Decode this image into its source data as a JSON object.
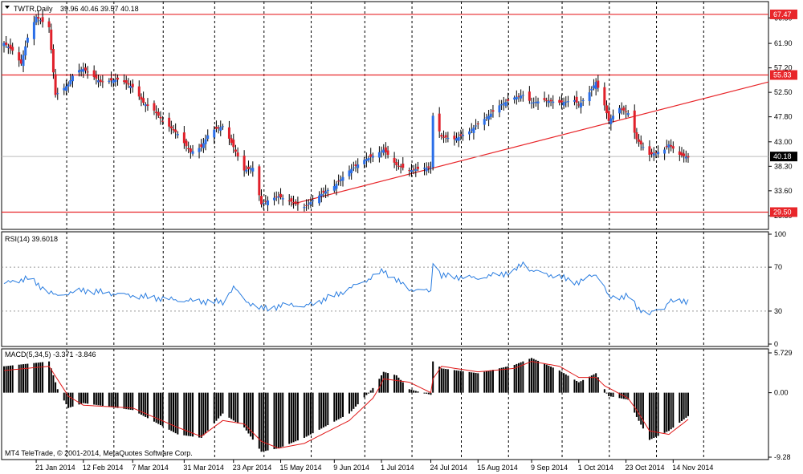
{
  "header": {
    "title": "TWTR,Daily",
    "ohlc": "39.96 40.46 39.57 40.18"
  },
  "rsi_label": "RSI(14) 39.6018",
  "macd_label": "MACD(5,34,5) -3.371 -3.846",
  "copyright": "MT4 TeleTrade, © 2001-2014, MetaQuotes Software Corp.",
  "colors": {
    "bull": "#2a6ee8",
    "bear": "#e0202a",
    "level_line": "#e8262a",
    "rsi_line": "#2a7de0",
    "macd_signal": "#e01818",
    "macd_hist": "#000000",
    "price_tag_fill": "#000000"
  },
  "chart_data": [
    {
      "type": "candlestick",
      "title": "TWTR,Daily",
      "price_axis_ticks": [
        "66.80",
        "61.90",
        "57.20",
        "52.50",
        "47.80",
        "43.00",
        "38.30",
        "33.60",
        "28.80"
      ],
      "x_tick_labels": [
        "21 Jan 2014",
        "12 Feb 2014",
        "7 Mar 2014",
        "31 Mar 2014",
        "23 Apr 2014",
        "15 May 2014",
        "9 Jun 2014",
        "1 Jul 2014",
        "24 Jul 2014",
        "15 Aug 2014",
        "9 Sep 2014",
        "1 Oct 2014",
        "23 Oct 2014",
        "14 Nov 2014"
      ],
      "ylim": [
        26.8,
        69.0
      ],
      "levels": [
        {
          "label": "67.47",
          "value": 67.47
        },
        {
          "label": "55.83",
          "value": 55.83
        },
        {
          "label": "29.50",
          "value": 29.5
        }
      ],
      "current_price": {
        "label": "40.18",
        "value": 40.18
      },
      "trendline": {
        "from": {
          "date": "2014-05-20",
          "price": 31.0
        },
        "to": {
          "date": "2014-11-30",
          "price": 54.5
        }
      },
      "anchors": [
        [
          "2014-01-06",
          62.0
        ],
        [
          "2014-01-10",
          60.5
        ],
        [
          "2014-01-14",
          58.0
        ],
        [
          "2014-01-17",
          63.0
        ],
        [
          "2014-01-21",
          67.0
        ],
        [
          "2014-01-24",
          66.0
        ],
        [
          "2014-01-27",
          65.0
        ],
        [
          "2014-01-30",
          52.0
        ],
        [
          "2014-02-05",
          54.0
        ],
        [
          "2014-02-08",
          56.5
        ],
        [
          "2014-02-12",
          57.0
        ],
        [
          "2014-02-20",
          54.5
        ],
        [
          "2014-03-01",
          55.0
        ],
        [
          "2014-03-07",
          53.5
        ],
        [
          "2014-03-12",
          50.5
        ],
        [
          "2014-03-17",
          49.0
        ],
        [
          "2014-03-21",
          47.0
        ],
        [
          "2014-03-28",
          44.5
        ],
        [
          "2014-04-03",
          41.0
        ],
        [
          "2014-04-08",
          42.0
        ],
        [
          "2014-04-12",
          45.0
        ],
        [
          "2014-04-18",
          46.0
        ],
        [
          "2014-04-23",
          42.0
        ],
        [
          "2014-04-28",
          37.5
        ],
        [
          "2014-05-02",
          38.0
        ],
        [
          "2014-05-06",
          31.0
        ],
        [
          "2014-05-10",
          32.0
        ],
        [
          "2014-05-14",
          32.5
        ],
        [
          "2014-05-20",
          31.5
        ],
        [
          "2014-05-26",
          30.5
        ],
        [
          "2014-06-03",
          33.0
        ],
        [
          "2014-06-09",
          34.5
        ],
        [
          "2014-06-16",
          37.5
        ],
        [
          "2014-06-23",
          39.5
        ],
        [
          "2014-06-28",
          40.5
        ],
        [
          "2014-07-02",
          41.5
        ],
        [
          "2014-07-08",
          38.5
        ],
        [
          "2014-07-14",
          37.5
        ],
        [
          "2014-07-21",
          38.0
        ],
        [
          "2014-07-24",
          38.0
        ],
        [
          "2014-07-25",
          48.0
        ],
        [
          "2014-07-29",
          44.0
        ],
        [
          "2014-08-04",
          43.5
        ],
        [
          "2014-08-11",
          45.0
        ],
        [
          "2014-08-15",
          46.5
        ],
        [
          "2014-08-20",
          48.0
        ],
        [
          "2014-08-25",
          50.0
        ],
        [
          "2014-09-01",
          51.5
        ],
        [
          "2014-09-05",
          52.0
        ],
        [
          "2014-09-09",
          50.5
        ],
        [
          "2014-09-15",
          51.0
        ],
        [
          "2014-09-22",
          50.5
        ],
        [
          "2014-09-29",
          51.0
        ],
        [
          "2014-10-01",
          50.0
        ],
        [
          "2014-10-06",
          52.5
        ],
        [
          "2014-10-09",
          54.5
        ],
        [
          "2014-10-13",
          50.0
        ],
        [
          "2014-10-15",
          47.0
        ],
        [
          "2014-10-20",
          49.5
        ],
        [
          "2014-10-24",
          48.5
        ],
        [
          "2014-10-28",
          43.5
        ],
        [
          "2014-11-03",
          40.5
        ],
        [
          "2014-11-10",
          41.5
        ],
        [
          "2014-11-12",
          42.5
        ],
        [
          "2014-11-17",
          40.5
        ],
        [
          "2014-11-21",
          40.0
        ]
      ]
    },
    {
      "type": "line",
      "title": "RSI(14) 39.6018",
      "axis_ticks": [
        "100",
        "70",
        "30",
        "0"
      ],
      "ylim": [
        0,
        100
      ],
      "guide_levels": [
        70,
        30
      ],
      "series": [
        {
          "name": "RSI(14)",
          "anchors": [
            [
              "2014-01-06",
              55
            ],
            [
              "2014-01-17",
              60
            ],
            [
              "2014-01-30",
              44
            ],
            [
              "2014-02-12",
              49
            ],
            [
              "2014-03-07",
              44
            ],
            [
              "2014-03-28",
              40
            ],
            [
              "2014-04-18",
              38
            ],
            [
              "2014-04-23",
              52
            ],
            [
              "2014-04-28",
              40
            ],
            [
              "2014-05-06",
              32
            ],
            [
              "2014-05-20",
              36
            ],
            [
              "2014-05-26",
              34
            ],
            [
              "2014-06-09",
              44
            ],
            [
              "2014-06-28",
              62
            ],
            [
              "2014-07-02",
              67
            ],
            [
              "2014-07-08",
              58
            ],
            [
              "2014-07-14",
              50
            ],
            [
              "2014-07-24",
              48
            ],
            [
              "2014-07-25",
              76
            ],
            [
              "2014-07-29",
              62
            ],
            [
              "2014-08-15",
              60
            ],
            [
              "2014-09-01",
              66
            ],
            [
              "2014-09-05",
              74
            ],
            [
              "2014-09-09",
              67
            ],
            [
              "2014-09-22",
              61
            ],
            [
              "2014-10-01",
              56
            ],
            [
              "2014-10-09",
              64
            ],
            [
              "2014-10-13",
              52
            ],
            [
              "2014-10-15",
              42
            ],
            [
              "2014-10-24",
              44
            ],
            [
              "2014-10-28",
              33
            ],
            [
              "2014-11-03",
              28
            ],
            [
              "2014-11-10",
              33
            ],
            [
              "2014-11-12",
              40
            ],
            [
              "2014-11-17",
              38
            ],
            [
              "2014-11-21",
              39.6
            ]
          ]
        }
      ]
    },
    {
      "type": "bar",
      "title": "MACD(5,34,5) -3.371 -3.846",
      "axis_ticks": [
        "5.729",
        "0.00",
        "-9.28"
      ],
      "ylim": [
        -9.28,
        5.729
      ],
      "series": [
        {
          "name": "MACD",
          "anchors": [
            [
              "2014-01-06",
              3.8
            ],
            [
              "2014-01-27",
              4.5
            ],
            [
              "2014-01-31",
              0.5
            ],
            [
              "2014-02-05",
              -2.2
            ],
            [
              "2014-02-12",
              -1.5
            ],
            [
              "2014-03-07",
              -2.5
            ],
            [
              "2014-03-28",
              -6.0
            ],
            [
              "2014-04-08",
              -6.5
            ],
            [
              "2014-04-18",
              -3.0
            ],
            [
              "2014-04-28",
              -5.0
            ],
            [
              "2014-05-06",
              -8.5
            ],
            [
              "2014-05-14",
              -8.0
            ],
            [
              "2014-05-26",
              -6.5
            ],
            [
              "2014-06-16",
              -3.0
            ],
            [
              "2014-06-28",
              1.0
            ],
            [
              "2014-07-02",
              3.0
            ],
            [
              "2014-07-08",
              2.5
            ],
            [
              "2014-07-14",
              0.5
            ],
            [
              "2014-07-24",
              -0.3
            ],
            [
              "2014-07-25",
              4.5
            ],
            [
              "2014-07-29",
              3.5
            ],
            [
              "2014-08-15",
              2.8
            ],
            [
              "2014-09-01",
              4.0
            ],
            [
              "2014-09-09",
              5.0
            ],
            [
              "2014-09-22",
              3.2
            ],
            [
              "2014-10-01",
              1.5
            ],
            [
              "2014-10-09",
              2.8
            ],
            [
              "2014-10-13",
              0.5
            ],
            [
              "2014-10-15",
              -0.5
            ],
            [
              "2014-10-24",
              -1.0
            ],
            [
              "2014-10-28",
              -3.5
            ],
            [
              "2014-11-03",
              -6.8
            ],
            [
              "2014-11-12",
              -5.5
            ],
            [
              "2014-11-21",
              -3.371
            ]
          ]
        },
        {
          "name": "Signal",
          "anchors": [
            [
              "2014-01-06",
              3.2
            ],
            [
              "2014-01-27",
              3.8
            ],
            [
              "2014-02-05",
              -0.5
            ],
            [
              "2014-02-12",
              -1.8
            ],
            [
              "2014-03-07",
              -2.2
            ],
            [
              "2014-03-28",
              -5.0
            ],
            [
              "2014-04-08",
              -6.3
            ],
            [
              "2014-04-18",
              -4.0
            ],
            [
              "2014-04-28",
              -4.5
            ],
            [
              "2014-05-06",
              -7.0
            ],
            [
              "2014-05-14",
              -8.0
            ],
            [
              "2014-05-26",
              -7.3
            ],
            [
              "2014-06-16",
              -4.0
            ],
            [
              "2014-06-28",
              -0.5
            ],
            [
              "2014-07-02",
              2.0
            ],
            [
              "2014-07-14",
              1.5
            ],
            [
              "2014-07-24",
              0.0
            ],
            [
              "2014-07-25",
              2.0
            ],
            [
              "2014-07-29",
              3.8
            ],
            [
              "2014-08-15",
              3.0
            ],
            [
              "2014-09-01",
              3.5
            ],
            [
              "2014-09-09",
              4.5
            ],
            [
              "2014-09-22",
              3.8
            ],
            [
              "2014-10-01",
              2.2
            ],
            [
              "2014-10-09",
              2.2
            ],
            [
              "2014-10-13",
              1.0
            ],
            [
              "2014-10-24",
              -0.8
            ],
            [
              "2014-10-28",
              -2.5
            ],
            [
              "2014-11-03",
              -5.5
            ],
            [
              "2014-11-12",
              -6.0
            ],
            [
              "2014-11-21",
              -3.846
            ]
          ]
        }
      ]
    }
  ]
}
